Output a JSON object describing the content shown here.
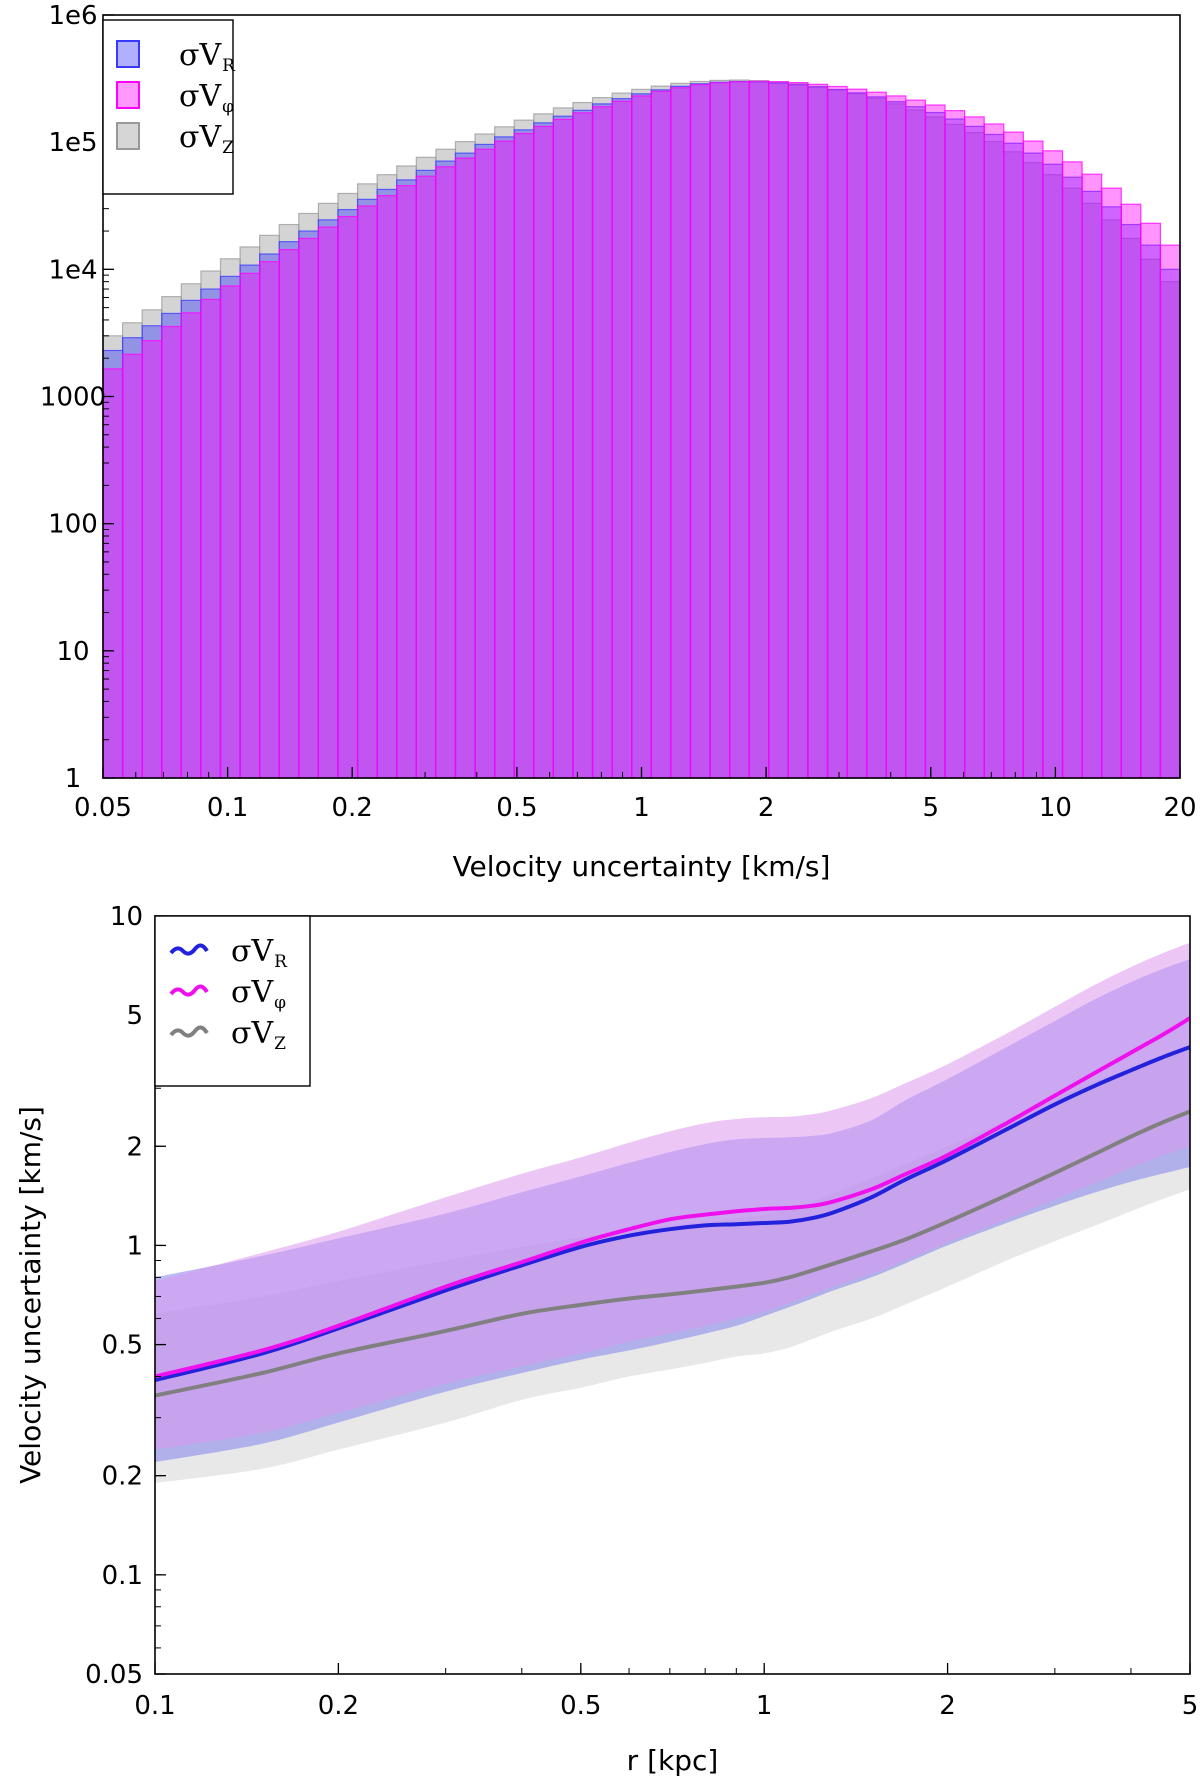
{
  "chart_data": [
    {
      "type": "bar",
      "subtype": "histogram",
      "xscale": "log",
      "yscale": "log",
      "xlim": [
        0.05,
        20
      ],
      "ylim": [
        1,
        1000000
      ],
      "xlabel": "Velocity uncertainty [km/s]",
      "ylabel": "",
      "xticks": [
        "0.05",
        "0.1",
        "0.2",
        "0.5",
        "1",
        "2",
        "5",
        "10",
        "20"
      ],
      "yticks": [
        "1",
        "10",
        "100",
        "1000",
        "1e4",
        "1e5",
        "1e6"
      ],
      "legend_position": "top-left",
      "bins": 55,
      "series": [
        {
          "name": "σVR",
          "label_main": "σV",
          "label_sub": "R",
          "color": "#3a3aff",
          "values": [
            2300,
            2900,
            3600,
            4500,
            5700,
            7000,
            8800,
            10800,
            13200,
            16500,
            20000,
            24500,
            29500,
            35500,
            42500,
            50500,
            60000,
            71000,
            82000,
            96000,
            110000,
            125000,
            142000,
            160000,
            178000,
            200000,
            220000,
            240000,
            258000,
            275000,
            288000,
            296000,
            300000,
            298000,
            292000,
            283000,
            272000,
            259000,
            244000,
            227000,
            208000,
            190000,
            171000,
            152000,
            133000,
            115000,
            98000,
            82000,
            67000,
            53000,
            41000,
            31000,
            22500,
            15500,
            10000
          ]
        },
        {
          "name": "σVφ",
          "label_main": "σV",
          "label_sub": "φ",
          "color": "#ff00ff",
          "values": [
            1650,
            2150,
            2750,
            3550,
            4550,
            5800,
            7400,
            9300,
            11500,
            14300,
            17500,
            21500,
            26000,
            31500,
            38000,
            45500,
            54000,
            64000,
            75000,
            88000,
            102000,
            117000,
            133000,
            151000,
            170000,
            190000,
            210000,
            231000,
            251000,
            268000,
            283000,
            293000,
            299000,
            301000,
            299000,
            294000,
            285000,
            274000,
            261000,
            247000,
            231000,
            214000,
            196000,
            177000,
            158000,
            139000,
            120000,
            102000,
            85500,
            70000,
            56000,
            43500,
            32500,
            23000,
            15500
          ]
        },
        {
          "name": "σVZ",
          "label_main": "σV",
          "label_sub": "Z",
          "color": "#999999",
          "values": [
            3000,
            3800,
            4800,
            6100,
            7700,
            9700,
            12100,
            15000,
            18500,
            22500,
            27500,
            33000,
            39500,
            47000,
            55500,
            65000,
            76000,
            88000,
            101000,
            116000,
            132000,
            149000,
            167000,
            186000,
            205000,
            224000,
            243000,
            260000,
            276000,
            290000,
            300000,
            306000,
            308000,
            305000,
            298000,
            288000,
            275000,
            259000,
            241000,
            221000,
            200000,
            179000,
            158000,
            138000,
            119000,
            101000,
            84000,
            69000,
            55500,
            43500,
            33000,
            24500,
            17500,
            12000,
            8000
          ]
        }
      ]
    },
    {
      "type": "line",
      "xscale": "log",
      "yscale": "log",
      "xlim": [
        0.1,
        5
      ],
      "ylim": [
        0.05,
        10
      ],
      "xlabel": "r [kpc]",
      "ylabel": "Velocity uncertainty [km/s]",
      "xticks": [
        "0.1",
        "0.2",
        "0.5",
        "1",
        "2",
        "5"
      ],
      "yticks": [
        "0.05",
        "0.1",
        "0.2",
        "0.5",
        "1",
        "2",
        "5",
        "10"
      ],
      "legend_position": "top-left",
      "x": [
        0.1,
        0.15,
        0.2,
        0.3,
        0.4,
        0.5,
        0.6,
        0.7,
        0.8,
        0.9,
        1.0,
        1.1,
        1.2,
        1.3,
        1.5,
        1.7,
        2.0,
        2.5,
        3.0,
        3.5,
        4.0,
        4.5,
        5.0
      ],
      "series": [
        {
          "name": "σVR",
          "label_main": "σV",
          "label_sub": "R",
          "color": "#2222dd",
          "band_color": "#7777ee",
          "values": [
            0.39,
            0.47,
            0.56,
            0.73,
            0.87,
            0.99,
            1.07,
            1.12,
            1.15,
            1.16,
            1.17,
            1.18,
            1.21,
            1.26,
            1.4,
            1.58,
            1.82,
            2.25,
            2.68,
            3.06,
            3.4,
            3.72,
            4.0
          ],
          "lower": [
            0.22,
            0.25,
            0.29,
            0.36,
            0.41,
            0.45,
            0.48,
            0.51,
            0.54,
            0.57,
            0.61,
            0.65,
            0.69,
            0.73,
            0.8,
            0.88,
            1.0,
            1.17,
            1.32,
            1.45,
            1.56,
            1.65,
            1.73
          ],
          "upper": [
            0.8,
            0.93,
            1.05,
            1.25,
            1.45,
            1.62,
            1.78,
            1.92,
            2.03,
            2.1,
            2.12,
            2.13,
            2.15,
            2.2,
            2.4,
            2.75,
            3.2,
            4.0,
            4.8,
            5.6,
            6.3,
            6.9,
            7.4
          ]
        },
        {
          "name": "σVφ",
          "label_main": "σV",
          "label_sub": "φ",
          "color": "#ee11ee",
          "band_color": "#dd99ee",
          "values": [
            0.4,
            0.48,
            0.57,
            0.75,
            0.89,
            1.02,
            1.12,
            1.2,
            1.24,
            1.27,
            1.29,
            1.3,
            1.32,
            1.36,
            1.48,
            1.64,
            1.88,
            2.35,
            2.85,
            3.35,
            3.85,
            4.35,
            4.9
          ],
          "lower": [
            0.24,
            0.27,
            0.31,
            0.38,
            0.43,
            0.47,
            0.51,
            0.54,
            0.57,
            0.6,
            0.63,
            0.67,
            0.71,
            0.75,
            0.82,
            0.9,
            1.02,
            1.2,
            1.38,
            1.55,
            1.72,
            1.87,
            2.0
          ],
          "upper": [
            0.78,
            0.95,
            1.1,
            1.4,
            1.65,
            1.85,
            2.05,
            2.22,
            2.35,
            2.42,
            2.45,
            2.46,
            2.5,
            2.58,
            2.8,
            3.1,
            3.55,
            4.4,
            5.3,
            6.2,
            7.0,
            7.7,
            8.3
          ]
        },
        {
          "name": "σVZ",
          "label_main": "σV",
          "label_sub": "Z",
          "color": "#808080",
          "band_color": "#cccccc",
          "values": [
            0.35,
            0.41,
            0.47,
            0.55,
            0.62,
            0.66,
            0.69,
            0.71,
            0.73,
            0.75,
            0.77,
            0.8,
            0.84,
            0.88,
            0.96,
            1.04,
            1.18,
            1.42,
            1.66,
            1.9,
            2.14,
            2.36,
            2.55
          ],
          "lower": [
            0.19,
            0.21,
            0.24,
            0.29,
            0.34,
            0.37,
            0.4,
            0.42,
            0.44,
            0.46,
            0.47,
            0.49,
            0.52,
            0.55,
            0.6,
            0.66,
            0.75,
            0.9,
            1.03,
            1.15,
            1.27,
            1.38,
            1.48
          ],
          "upper": [
            0.62,
            0.7,
            0.78,
            0.9,
            0.99,
            1.06,
            1.11,
            1.15,
            1.18,
            1.21,
            1.24,
            1.29,
            1.36,
            1.44,
            1.6,
            1.76,
            2.0,
            2.4,
            2.8,
            3.15,
            3.45,
            3.7,
            3.9
          ]
        }
      ]
    }
  ]
}
